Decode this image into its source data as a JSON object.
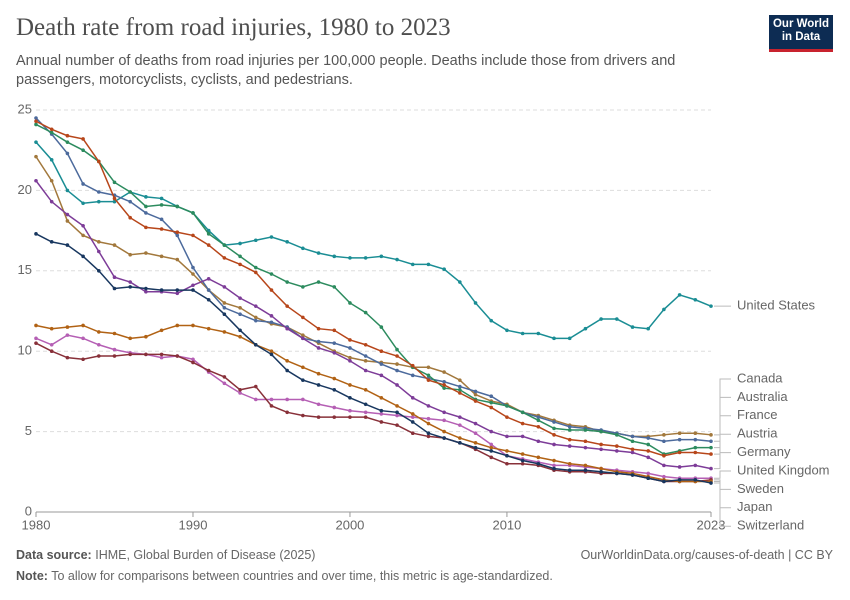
{
  "chart_data": {
    "type": "line",
    "title": "Death rate from road injuries, 1980 to 2023",
    "subtitle": "Annual number of deaths from road injuries per 100,000 people. Deaths include those from drivers and passengers, motorcyclists, cyclists, and pedestrians.",
    "logo": [
      "Our World",
      "in Data"
    ],
    "source_label": "Data source:",
    "source": "IHME, Global Burden of Disease (2025)",
    "url": "OurWorldinData.org/causes-of-death | CC BY",
    "note_label": "Note:",
    "note": "To allow for comparisons between countries and over time, this metric is age-standardized.",
    "x": [
      1980,
      1981,
      1982,
      1983,
      1984,
      1985,
      1986,
      1987,
      1988,
      1989,
      1990,
      1991,
      1992,
      1993,
      1994,
      1995,
      1996,
      1997,
      1998,
      1999,
      2000,
      2001,
      2002,
      2003,
      2004,
      2005,
      2006,
      2007,
      2008,
      2009,
      2010,
      2011,
      2012,
      2013,
      2014,
      2015,
      2016,
      2017,
      2018,
      2019,
      2020,
      2021,
      2022,
      2023
    ],
    "xlim": [
      1980,
      2023
    ],
    "xticks": [
      1980,
      1990,
      2000,
      2010,
      2023
    ],
    "ylim": [
      0,
      25
    ],
    "yticks": [
      0,
      5,
      10,
      15,
      20,
      25
    ],
    "grid": true,
    "series": [
      {
        "name": "United States",
        "color": "#1a8d94",
        "values": [
          23.0,
          21.9,
          20.0,
          19.2,
          19.3,
          19.3,
          19.9,
          19.6,
          19.5,
          19.0,
          18.6,
          17.5,
          16.6,
          16.7,
          16.9,
          17.1,
          16.8,
          16.4,
          16.1,
          15.9,
          15.8,
          15.8,
          15.9,
          15.7,
          15.4,
          15.4,
          15.1,
          14.3,
          13.0,
          11.9,
          11.3,
          11.1,
          11.1,
          10.8,
          10.8,
          11.4,
          12.0,
          12.0,
          11.5,
          11.4,
          12.6,
          13.5,
          13.2,
          12.8
        ]
      },
      {
        "name": "Canada",
        "color": "#a2783c",
        "values": [
          22.1,
          20.6,
          18.1,
          17.2,
          16.8,
          16.6,
          16.0,
          16.1,
          15.9,
          15.7,
          14.8,
          13.8,
          13.0,
          12.7,
          12.1,
          11.7,
          11.5,
          11.0,
          10.5,
          10.0,
          9.6,
          9.4,
          9.3,
          9.2,
          9.0,
          9.0,
          8.7,
          8.2,
          7.3,
          6.9,
          6.7,
          6.2,
          6.0,
          5.7,
          5.4,
          5.3,
          5.0,
          4.9,
          4.7,
          4.7,
          4.8,
          4.9,
          4.9,
          4.8
        ]
      },
      {
        "name": "Australia",
        "color": "#4c6a9c",
        "values": [
          24.5,
          23.5,
          22.3,
          20.4,
          19.9,
          19.7,
          19.3,
          18.6,
          18.2,
          17.2,
          15.2,
          13.8,
          12.7,
          12.3,
          11.9,
          11.8,
          11.5,
          10.8,
          10.6,
          10.5,
          10.2,
          9.7,
          9.2,
          8.8,
          8.5,
          8.3,
          8.1,
          7.8,
          7.5,
          7.2,
          6.6,
          6.2,
          5.9,
          5.6,
          5.3,
          5.2,
          5.1,
          4.9,
          4.7,
          4.6,
          4.4,
          4.5,
          4.5,
          4.4
        ]
      },
      {
        "name": "France",
        "color": "#2c8b5e",
        "values": [
          24.1,
          23.6,
          23.0,
          22.5,
          21.8,
          20.5,
          19.9,
          19.0,
          19.1,
          19.0,
          18.6,
          17.3,
          16.6,
          15.9,
          15.2,
          14.8,
          14.3,
          14.0,
          14.3,
          14.0,
          13.0,
          12.4,
          11.5,
          10.1,
          9.0,
          8.5,
          7.7,
          7.6,
          7.0,
          6.8,
          6.6,
          6.2,
          5.7,
          5.2,
          5.1,
          5.1,
          5.0,
          4.8,
          4.4,
          4.2,
          3.6,
          3.8,
          4.0,
          4.0
        ]
      },
      {
        "name": "Austria",
        "color": "#b7461a",
        "values": [
          24.3,
          23.8,
          23.4,
          23.2,
          21.8,
          19.5,
          18.3,
          17.7,
          17.6,
          17.4,
          17.2,
          16.6,
          15.8,
          15.4,
          14.9,
          13.8,
          12.8,
          12.1,
          11.4,
          11.3,
          10.7,
          10.4,
          10.0,
          9.7,
          9.1,
          8.2,
          7.9,
          7.4,
          6.9,
          6.5,
          5.9,
          5.5,
          5.3,
          4.8,
          4.5,
          4.4,
          4.2,
          4.1,
          3.9,
          3.8,
          3.5,
          3.7,
          3.7,
          3.6
        ]
      },
      {
        "name": "Germany",
        "color": "#7d3c98",
        "values": [
          20.6,
          19.3,
          18.5,
          17.8,
          16.2,
          14.6,
          14.3,
          13.7,
          13.7,
          13.6,
          14.1,
          14.5,
          14.0,
          13.3,
          12.8,
          12.2,
          11.4,
          10.8,
          10.2,
          9.9,
          9.4,
          8.8,
          8.5,
          7.9,
          7.1,
          6.6,
          6.2,
          5.9,
          5.5,
          5.0,
          4.7,
          4.7,
          4.4,
          4.2,
          4.1,
          4.0,
          3.9,
          3.8,
          3.7,
          3.4,
          2.9,
          2.8,
          2.9,
          2.7
        ]
      },
      {
        "name": "United Kingdom",
        "color": "#b55fb4",
        "values": [
          10.8,
          10.4,
          11.0,
          10.8,
          10.4,
          10.1,
          9.9,
          9.8,
          9.6,
          9.7,
          9.5,
          8.7,
          8.0,
          7.4,
          7.0,
          7.0,
          7.0,
          7.0,
          6.7,
          6.5,
          6.3,
          6.2,
          6.1,
          6.0,
          5.9,
          5.8,
          5.7,
          5.4,
          4.9,
          4.2,
          3.5,
          3.3,
          3.1,
          2.9,
          2.9,
          2.8,
          2.7,
          2.6,
          2.5,
          2.4,
          2.2,
          2.1,
          2.1,
          2.1
        ]
      },
      {
        "name": "Sweden",
        "color": "#883039",
        "values": [
          10.5,
          10.0,
          9.6,
          9.5,
          9.7,
          9.7,
          9.8,
          9.8,
          9.8,
          9.7,
          9.3,
          8.8,
          8.4,
          7.6,
          7.8,
          6.6,
          6.2,
          6.0,
          5.9,
          5.9,
          5.9,
          5.9,
          5.6,
          5.4,
          4.9,
          4.7,
          4.6,
          4.3,
          3.9,
          3.4,
          3.0,
          3.0,
          2.9,
          2.6,
          2.5,
          2.5,
          2.4,
          2.4,
          2.3,
          2.1,
          1.9,
          1.9,
          1.9,
          2.0
        ]
      },
      {
        "name": "Japan",
        "color": "#b16214",
        "values": [
          11.6,
          11.4,
          11.5,
          11.6,
          11.2,
          11.1,
          10.8,
          10.9,
          11.3,
          11.6,
          11.6,
          11.4,
          11.2,
          10.9,
          10.4,
          10.0,
          9.4,
          9.0,
          8.6,
          8.3,
          7.9,
          7.6,
          7.1,
          6.6,
          6.1,
          5.5,
          5.0,
          4.6,
          4.3,
          4.0,
          3.8,
          3.6,
          3.4,
          3.2,
          3.0,
          2.9,
          2.7,
          2.5,
          2.4,
          2.2,
          2.0,
          1.9,
          1.9,
          1.9
        ]
      },
      {
        "name": "Switzerland",
        "color": "#18375f",
        "values": [
          17.3,
          16.8,
          16.6,
          15.9,
          15.0,
          13.9,
          14.0,
          13.9,
          13.8,
          13.8,
          13.8,
          13.2,
          12.3,
          11.3,
          10.4,
          9.8,
          8.8,
          8.2,
          7.9,
          7.6,
          7.1,
          6.7,
          6.3,
          6.2,
          5.6,
          4.9,
          4.6,
          4.3,
          4.0,
          3.8,
          3.5,
          3.2,
          3.0,
          2.7,
          2.6,
          2.6,
          2.5,
          2.4,
          2.3,
          2.1,
          1.9,
          2.0,
          2.0,
          1.8
        ]
      }
    ]
  }
}
